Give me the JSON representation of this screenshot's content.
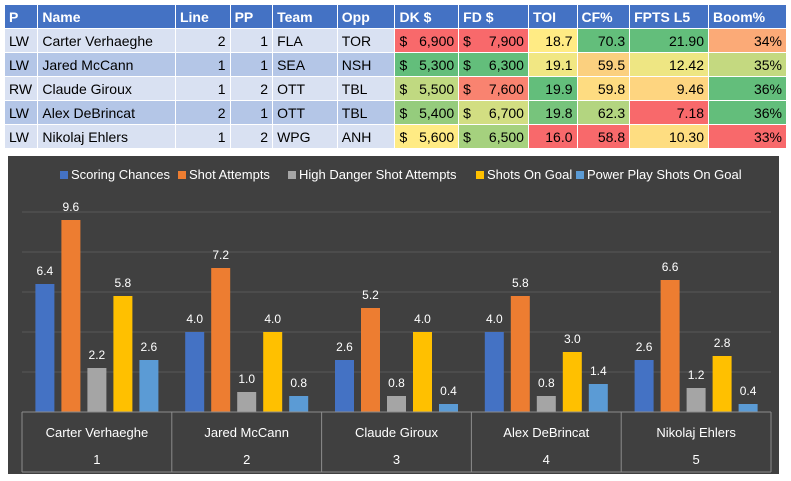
{
  "table": {
    "headers": [
      "P",
      "Name",
      "Line",
      "PP",
      "Team",
      "Opp",
      "DK $",
      "FD $",
      "TOI",
      "CF%",
      "FPTS L5",
      "Boom%"
    ],
    "rows": [
      {
        "p": "LW",
        "name": "Carter Verhaeghe",
        "line": "2",
        "pp": "1",
        "team": "FLA",
        "opp": "TOR",
        "dk": "6,900",
        "fd": "7,900",
        "toi": "18.7",
        "cf": "70.3",
        "fpts": "21.90",
        "boom": "34%"
      },
      {
        "p": "LW",
        "name": "Jared McCann",
        "line": "1",
        "pp": "1",
        "team": "SEA",
        "opp": "NSH",
        "dk": "5,300",
        "fd": "6,300",
        "toi": "19.1",
        "cf": "59.5",
        "fpts": "12.42",
        "boom": "35%"
      },
      {
        "p": "RW",
        "name": "Claude Giroux",
        "line": "1",
        "pp": "2",
        "team": "OTT",
        "opp": "TBL",
        "dk": "5,500",
        "fd": "7,600",
        "toi": "19.9",
        "cf": "59.8",
        "fpts": "9.46",
        "boom": "36%"
      },
      {
        "p": "LW",
        "name": "Alex DeBrincat",
        "line": "2",
        "pp": "1",
        "team": "OTT",
        "opp": "TBL",
        "dk": "5,400",
        "fd": "6,700",
        "toi": "19.8",
        "cf": "62.3",
        "fpts": "7.18",
        "boom": "36%"
      },
      {
        "p": "LW",
        "name": "Nikolaj Ehlers",
        "line": "1",
        "pp": "2",
        "team": "WPG",
        "opp": "ANH",
        "dk": "5,600",
        "fd": "6,500",
        "toi": "16.0",
        "cf": "58.8",
        "fpts": "10.30",
        "boom": "33%"
      }
    ],
    "cell_colors": [
      {
        "dk": "#f8696b",
        "fd": "#f8696b",
        "toi": "#ffeb84",
        "cf": "#63be7b",
        "fpts": "#63be7b",
        "boom": "#fbaa77"
      },
      {
        "dk": "#63be7b",
        "fd": "#63be7b",
        "toi": "#f1e783",
        "cf": "#fbd07f",
        "fpts": "#eee683",
        "boom": "#c4d980"
      },
      {
        "dk": "#c0d981",
        "fd": "#f98370",
        "toi": "#63be7b",
        "cf": "#fedc81",
        "fpts": "#fed580",
        "boom": "#63be7b"
      },
      {
        "dk": "#95cc7d",
        "fd": "#d2de82",
        "toi": "#77c47c",
        "cf": "#b3d580",
        "fpts": "#f8696b",
        "boom": "#63be7b"
      },
      {
        "dk": "#ffeb84",
        "fd": "#a5d17e",
        "toi": "#f8696b",
        "cf": "#f8696b",
        "fpts": "#fedd81",
        "boom": "#f8696b"
      }
    ],
    "currency_symbol": "$"
  },
  "chart_data": {
    "type": "bar",
    "title": "",
    "legend_position": "top",
    "categories": [
      "Carter Verhaeghe",
      "Jared McCann",
      "Claude Giroux",
      "Alex DeBrincat",
      "Nikolaj Ehlers"
    ],
    "category_numbers": [
      "1",
      "2",
      "3",
      "4",
      "5"
    ],
    "series": [
      {
        "name": "Scoring Chances",
        "color": "#4472c4",
        "values": [
          6.4,
          4.0,
          2.6,
          4.0,
          2.6
        ]
      },
      {
        "name": "Shot Attempts",
        "color": "#ed7d31",
        "values": [
          9.6,
          7.2,
          5.2,
          5.8,
          6.6
        ]
      },
      {
        "name": "High Danger Shot Attempts",
        "color": "#a5a5a5",
        "values": [
          2.2,
          1.0,
          0.8,
          0.8,
          1.2
        ]
      },
      {
        "name": "Shots On Goal",
        "color": "#ffc000",
        "values": [
          5.8,
          4.0,
          4.0,
          3.0,
          2.8
        ]
      },
      {
        "name": "Power Play Shots On Goal",
        "color": "#5b9bd5",
        "values": [
          2.6,
          0.8,
          0.4,
          1.4,
          0.4
        ]
      }
    ],
    "ylim": [
      0,
      10
    ],
    "grid": true,
    "xlabel": "",
    "ylabel": ""
  }
}
